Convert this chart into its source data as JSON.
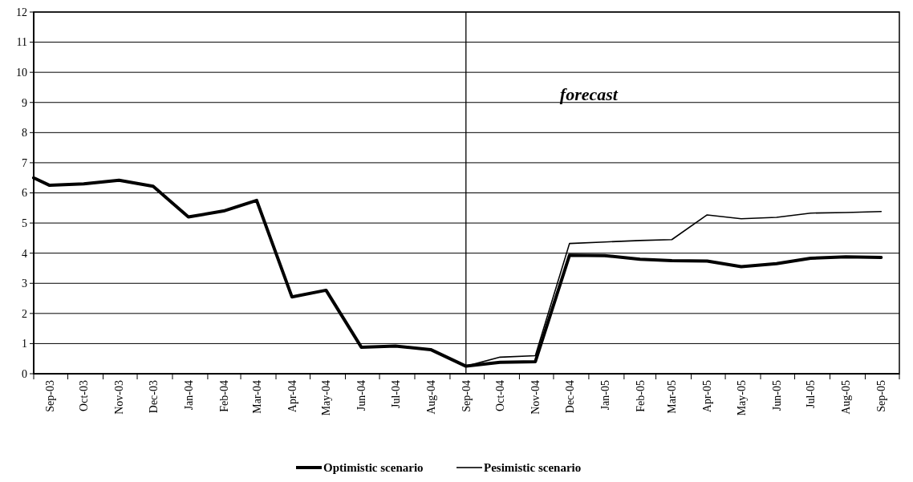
{
  "chart_data": {
    "type": "line",
    "annotations": [
      "forecast"
    ],
    "x": [
      "2003-09-01",
      "2003-09-15",
      "2003-10-15",
      "2003-11-15",
      "2003-12-15",
      "2004-01-15",
      "2004-02-15",
      "2004-03-15",
      "2004-04-15",
      "2004-05-15",
      "2004-06-15",
      "2004-07-15",
      "2004-08-15",
      "2004-09-15",
      "2004-10-15",
      "2004-11-15",
      "2004-12-15",
      "2005-01-15",
      "2005-02-15",
      "2005-03-15",
      "2005-04-15",
      "2005-05-15",
      "2005-06-15",
      "2005-07-15",
      "2005-08-15",
      "2005-09-15"
    ],
    "series": [
      {
        "name": "Optimistic scenario",
        "color": "#000000",
        "line_style": "solid",
        "values": [
          6.5,
          6.25,
          6.3,
          6.42,
          6.22,
          5.2,
          5.4,
          5.75,
          2.55,
          2.77,
          0.88,
          0.92,
          0.8,
          0.25,
          0.38,
          0.4,
          3.93,
          3.92,
          3.8,
          3.75,
          3.74,
          3.55,
          3.65,
          3.83,
          3.88,
          3.86
        ]
      },
      {
        "name": "Pesimistic scenario",
        "color": "#000000",
        "line_style": "solid",
        "x": [
          "2004-09-15",
          "2004-10-15",
          "2004-11-15",
          "2004-12-15",
          "2005-01-15",
          "2005-02-15",
          "2005-03-15",
          "2005-04-15",
          "2005-05-15",
          "2005-06-15",
          "2005-07-15",
          "2005-08-15",
          "2005-09-15"
        ],
        "values": [
          0.25,
          0.55,
          0.6,
          4.32,
          4.37,
          4.42,
          4.45,
          5.27,
          5.14,
          5.19,
          5.33,
          5.35,
          5.38
        ]
      }
    ],
    "xlim": [
      "2003-09-01",
      "2005-10-01"
    ],
    "xticks": [
      {
        "value": "2003-09-01",
        "label": null
      },
      {
        "value": "2003-10-01",
        "label": null
      },
      {
        "value": "2003-11-01",
        "label": null
      },
      {
        "value": "2003-12-01",
        "label": null
      },
      {
        "value": "2004-01-01",
        "label": null
      },
      {
        "value": "2004-02-01",
        "label": null
      },
      {
        "value": "2004-03-01",
        "label": null
      },
      {
        "value": "2004-04-01",
        "label": null
      },
      {
        "value": "2004-05-01",
        "label": null
      },
      {
        "value": "2004-06-01",
        "label": null
      },
      {
        "value": "2004-07-01",
        "label": null
      },
      {
        "value": "2004-08-01",
        "label": null
      },
      {
        "value": "2004-09-01",
        "label": null
      },
      {
        "value": "2004-10-01",
        "label": null
      },
      {
        "value": "2004-11-01",
        "label": null
      },
      {
        "value": "2004-12-01",
        "label": null
      },
      {
        "value": "2005-01-01",
        "label": null
      },
      {
        "value": "2005-02-01",
        "label": null
      },
      {
        "value": "2005-03-01",
        "label": null
      },
      {
        "value": "2005-04-01",
        "label": null
      },
      {
        "value": "2005-05-01",
        "label": null
      },
      {
        "value": "2005-06-01",
        "label": null
      },
      {
        "value": "2005-07-01",
        "label": null
      },
      {
        "value": "2005-08-01",
        "label": null
      },
      {
        "value": "2005-09-01",
        "label": null
      },
      {
        "value": "2005-10-01",
        "label": null
      },
      {
        "value": "2003-09-15",
        "label": "Sep-03"
      },
      {
        "value": "2003-10-15",
        "label": "Oct-03"
      },
      {
        "value": "2003-11-15",
        "label": "Nov-03"
      },
      {
        "value": "2003-12-15",
        "label": "Dec-03"
      },
      {
        "value": "2004-01-15",
        "label": "Jan-04"
      },
      {
        "value": "2004-02-15",
        "label": "Feb-04"
      },
      {
        "value": "2004-03-15",
        "label": "Mar-04"
      },
      {
        "value": "2004-04-15",
        "label": "Apr-04"
      },
      {
        "value": "2004-05-15",
        "label": "May-04"
      },
      {
        "value": "2004-06-15",
        "label": "Jun-04"
      },
      {
        "value": "2004-07-15",
        "label": "Jul-04"
      },
      {
        "value": "2004-08-15",
        "label": "Aug-04"
      },
      {
        "value": "2004-09-15",
        "label": "Sep-04"
      },
      {
        "value": "2004-10-15",
        "label": "Oct-04"
      },
      {
        "value": "2004-11-15",
        "label": "Nov-04"
      },
      {
        "value": "2004-12-15",
        "label": "Dec-04"
      },
      {
        "value": "2005-01-15",
        "label": "Jan-05"
      },
      {
        "value": "2005-02-15",
        "label": "Feb-05"
      },
      {
        "value": "2005-03-15",
        "label": "Mar-05"
      },
      {
        "value": "2005-04-15",
        "label": "Apr-05"
      },
      {
        "value": "2005-05-15",
        "label": "May-05"
      },
      {
        "value": "2005-06-15",
        "label": "Jun-05"
      },
      {
        "value": "2005-07-15",
        "label": "Jul-05"
      },
      {
        "value": "2005-08-15",
        "label": "Aug-05"
      },
      {
        "value": "2005-09-15",
        "label": "Sep-05"
      }
    ],
    "ylim": [
      0,
      12
    ],
    "yticks": [
      0,
      1,
      2,
      3,
      4,
      5,
      6,
      7,
      8,
      9,
      10,
      11,
      12
    ],
    "grid": "y",
    "legend": "bottom",
    "marker": "none",
    "ref_lines": [
      {
        "axis": "x",
        "value": "2004-09-15",
        "color": "#000000"
      }
    ]
  }
}
